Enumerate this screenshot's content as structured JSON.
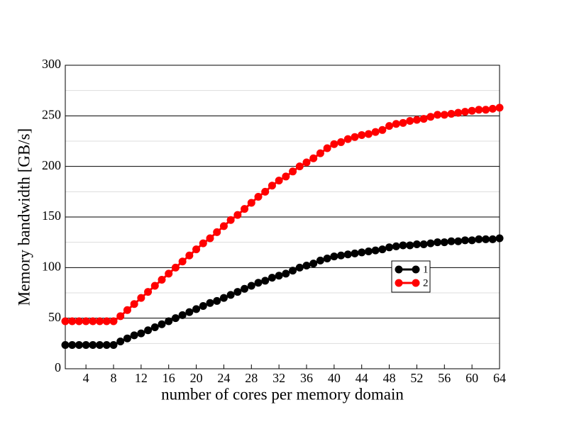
{
  "chart_data": {
    "type": "line",
    "x_label": "number of cores per memory domain",
    "y_label": "Memory bandwidth [GB/s]",
    "x": [
      1,
      2,
      3,
      4,
      5,
      6,
      7,
      8,
      9,
      10,
      11,
      12,
      13,
      14,
      15,
      16,
      17,
      18,
      19,
      20,
      21,
      22,
      23,
      24,
      25,
      26,
      27,
      28,
      29,
      30,
      31,
      32,
      33,
      34,
      35,
      36,
      37,
      38,
      39,
      40,
      41,
      42,
      43,
      44,
      45,
      46,
      47,
      48,
      49,
      50,
      51,
      52,
      53,
      54,
      55,
      56,
      57,
      58,
      59,
      60,
      61,
      62,
      63,
      64
    ],
    "series": [
      {
        "name": "1",
        "color": "#000000",
        "values": [
          23.5,
          23.5,
          23.5,
          23.5,
          23.5,
          23.5,
          23.5,
          23.5,
          27,
          30,
          33,
          35,
          38,
          41,
          44,
          47,
          50,
          53,
          56,
          59,
          62,
          65,
          67,
          70,
          73,
          76,
          79,
          82,
          85,
          87,
          90,
          92,
          94,
          97,
          100,
          102,
          104,
          107,
          109,
          111,
          112,
          113,
          114,
          115,
          116,
          117,
          118,
          120,
          121,
          122,
          122,
          123,
          123,
          124,
          125,
          125,
          126,
          126,
          127,
          127,
          128,
          128,
          128,
          129
        ]
      },
      {
        "name": "2",
        "color": "#ff0000",
        "values": [
          47,
          47,
          47,
          47,
          47,
          47,
          47,
          47,
          52,
          58,
          64,
          70,
          76,
          82,
          88,
          94,
          100,
          106,
          112,
          118,
          124,
          129,
          135,
          141,
          147,
          152,
          158,
          164,
          170,
          175,
          181,
          186,
          190,
          195,
          200,
          204,
          208,
          213,
          218,
          222,
          224,
          227,
          229,
          231,
          232,
          234,
          236,
          240,
          242,
          243,
          245,
          246,
          247,
          249,
          251,
          251,
          252,
          253,
          254,
          255,
          256,
          256,
          257,
          258
        ]
      }
    ],
    "xlim": [
      1,
      64
    ],
    "xticks": [
      4,
      8,
      12,
      16,
      20,
      24,
      28,
      32,
      36,
      40,
      44,
      48,
      52,
      56,
      60,
      64
    ],
    "ylim": [
      0,
      300
    ],
    "yticks": [
      0,
      50,
      100,
      150,
      200,
      250,
      300
    ],
    "y_minor_ticks": [
      25,
      75,
      125,
      175,
      225,
      275
    ],
    "grid": true,
    "legend": "center right"
  }
}
